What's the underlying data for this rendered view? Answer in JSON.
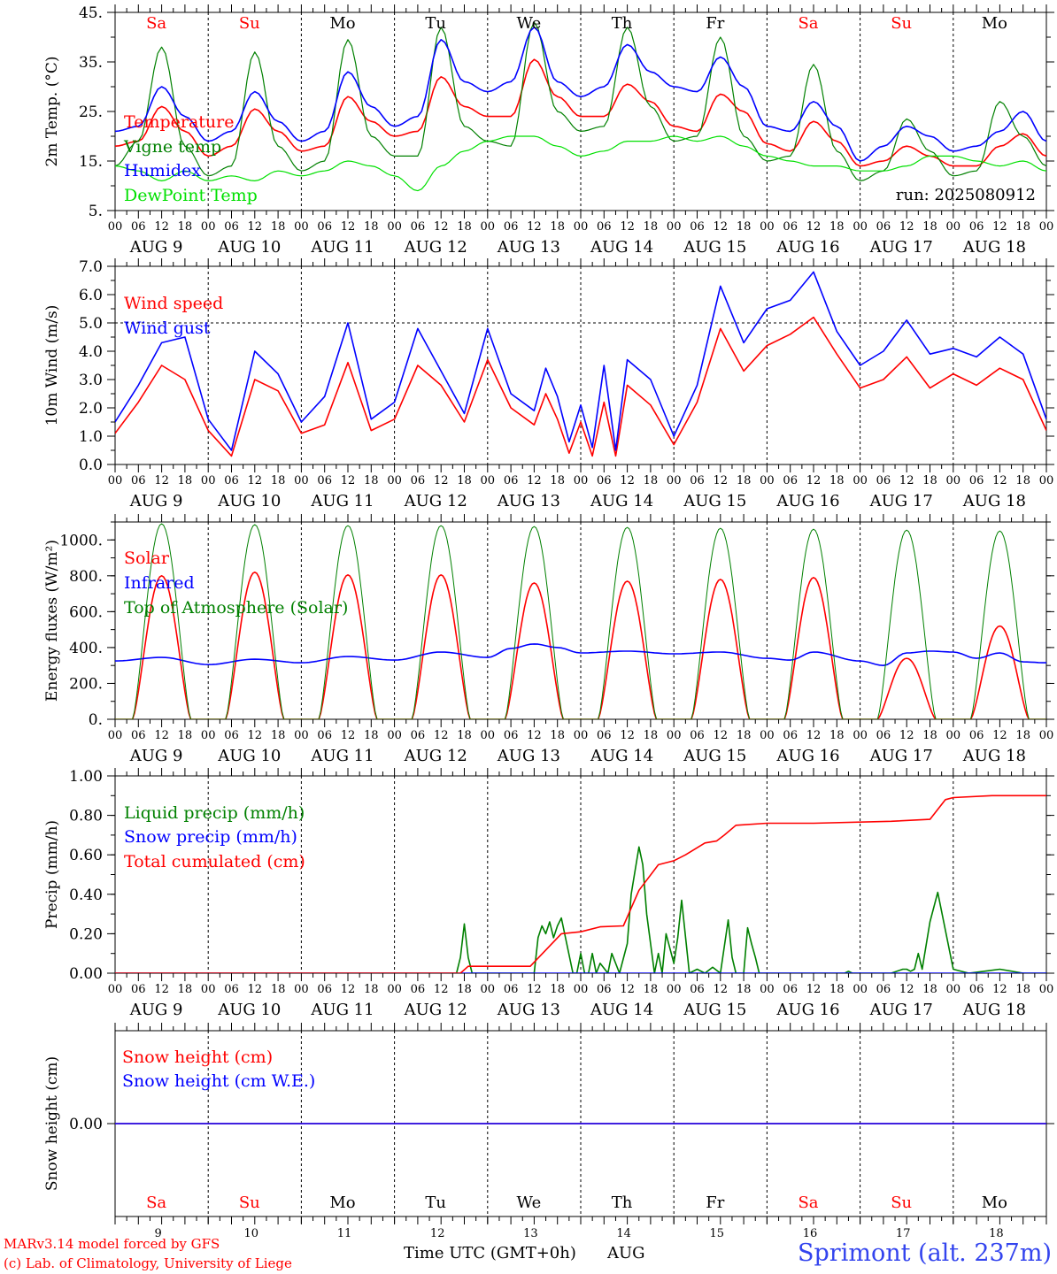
{
  "colors": {
    "red": "#ff0000",
    "blue": "#0000ff",
    "green": "#008000",
    "lightgreen": "#00e000",
    "black": "#000000"
  },
  "days": [
    {
      "label": "Sa",
      "weekend": true,
      "date": "9"
    },
    {
      "label": "Su",
      "weekend": true,
      "date": "10"
    },
    {
      "label": "Mo",
      "weekend": false,
      "date": "11"
    },
    {
      "label": "Tu",
      "weekend": false,
      "date": "12"
    },
    {
      "label": "We",
      "weekend": false,
      "date": "13"
    },
    {
      "label": "Th",
      "weekend": false,
      "date": "14"
    },
    {
      "label": "Fr",
      "weekend": false,
      "date": "15"
    },
    {
      "label": "Sa",
      "weekend": true,
      "date": "16"
    },
    {
      "label": "Su",
      "weekend": true,
      "date": "17"
    },
    {
      "label": "Mo",
      "weekend": false,
      "date": "18"
    }
  ],
  "hour_ticks": [
    "00",
    "06",
    "12",
    "18"
  ],
  "date_row": [
    "AUG  9",
    "AUG 10",
    "AUG 11",
    "AUG 12",
    "AUG 13",
    "AUG 14",
    "AUG 15",
    "AUG 16",
    "AUG 17",
    "AUG 18"
  ],
  "footer": {
    "credit_line1": "MARv3.14 model forced by GFS",
    "credit_line2": "(c) Lab. of Climatology, University of Liege",
    "time_label": "Time UTC (GMT+0h)",
    "month": "AUG",
    "location": "Sprimont (alt. 237m)"
  },
  "chart_data": [
    {
      "type": "line",
      "ylabel": "2m Temp. (°C)",
      "ylim": [
        5,
        45
      ],
      "yticks": [
        "5.",
        "15.",
        "25.",
        "35.",
        "45."
      ],
      "yticks_values": [
        5,
        15,
        25,
        35,
        45
      ],
      "annotation": "run: 2025080912",
      "x_unit": "hours since AUG 9 00 UTC",
      "series": [
        {
          "name": "Temperature",
          "color": "#ff0000",
          "x": [
            0,
            6,
            12,
            18,
            24,
            30,
            36,
            42,
            48,
            54,
            60,
            66,
            72,
            78,
            84,
            90,
            96,
            102,
            108,
            114,
            120,
            126,
            132,
            138,
            144,
            150,
            156,
            162,
            168,
            174,
            180,
            186,
            192,
            198,
            204,
            210,
            216,
            222,
            228,
            234,
            240
          ],
          "values": [
            18,
            19,
            26,
            21,
            16,
            18,
            25.5,
            21,
            17,
            18,
            28,
            23,
            20,
            21,
            32,
            26,
            24,
            24,
            35.5,
            28,
            24,
            24,
            30.5,
            27,
            22,
            21,
            28.5,
            25,
            18.5,
            17,
            23,
            19,
            14,
            15,
            18,
            16,
            14,
            14,
            18,
            20.5,
            16
          ]
        },
        {
          "name": "Vigne temp",
          "color": "#008000",
          "x": [
            0,
            6,
            12,
            18,
            24,
            30,
            36,
            42,
            48,
            54,
            60,
            66,
            72,
            78,
            84,
            90,
            96,
            102,
            108,
            114,
            120,
            126,
            132,
            138,
            144,
            150,
            156,
            162,
            168,
            174,
            180,
            186,
            192,
            198,
            204,
            210,
            216,
            222,
            228,
            234,
            240
          ],
          "values": [
            14,
            19,
            38,
            18,
            12,
            14,
            37,
            18,
            13,
            15,
            39.5,
            20,
            16,
            16,
            42,
            22,
            19,
            18,
            43,
            25,
            21,
            22,
            42,
            26,
            19,
            20,
            40,
            20,
            15,
            16,
            34.5,
            17,
            11,
            13,
            23.5,
            17,
            12,
            13,
            27,
            20,
            14
          ]
        },
        {
          "name": "Humidex",
          "color": "#0000ff",
          "x": [
            0,
            6,
            12,
            18,
            24,
            30,
            36,
            42,
            48,
            54,
            60,
            66,
            72,
            78,
            84,
            90,
            96,
            102,
            108,
            114,
            120,
            126,
            132,
            138,
            144,
            150,
            156,
            162,
            168,
            174,
            180,
            186,
            192,
            198,
            204,
            210,
            216,
            222,
            228,
            234,
            240
          ],
          "values": [
            21,
            22,
            30,
            24,
            19,
            21,
            29,
            23,
            19,
            21,
            33,
            26,
            22,
            24,
            39.5,
            31,
            29,
            31,
            42,
            31,
            28,
            30,
            38.5,
            33,
            30,
            29,
            36,
            30,
            22,
            21,
            27,
            22,
            15,
            18,
            22,
            20,
            17,
            18,
            21,
            25,
            19
          ]
        },
        {
          "name": "DewPoint Temp",
          "color": "#00e000",
          "x": [
            0,
            6,
            12,
            18,
            24,
            30,
            36,
            42,
            48,
            54,
            60,
            66,
            72,
            78,
            84,
            90,
            96,
            102,
            108,
            114,
            120,
            126,
            132,
            138,
            144,
            150,
            156,
            162,
            168,
            174,
            180,
            186,
            192,
            198,
            204,
            210,
            216,
            222,
            228,
            234,
            240
          ],
          "values": [
            14,
            13,
            11,
            13,
            11,
            12,
            11,
            13,
            12,
            13,
            15,
            14,
            12,
            9,
            14,
            17,
            19,
            20,
            20,
            18,
            16,
            17,
            19,
            19,
            20,
            19,
            20,
            18,
            16,
            15,
            14,
            14,
            13,
            13,
            14,
            16,
            16,
            15,
            14,
            15,
            13
          ]
        }
      ]
    },
    {
      "type": "line",
      "ylabel": "10m Wind (m/s)",
      "ylim": [
        0,
        7
      ],
      "yticks": [
        "0.0",
        "1.0",
        "2.0",
        "3.0",
        "4.0",
        "5.0",
        "6.0",
        "7.0"
      ],
      "yticks_values": [
        0,
        1,
        2,
        3,
        4,
        5,
        6,
        7
      ],
      "reference_line": 5.0,
      "x_unit": "hours since AUG 9 00 UTC",
      "series": [
        {
          "name": "Wind speed",
          "color": "#ff0000",
          "x": [
            0,
            6,
            12,
            18,
            24,
            30,
            36,
            42,
            48,
            54,
            60,
            66,
            72,
            78,
            84,
            90,
            96,
            102,
            108,
            111,
            114,
            117,
            120,
            123,
            126,
            129,
            132,
            138,
            144,
            150,
            156,
            162,
            168,
            174,
            180,
            186,
            192,
            198,
            204,
            210,
            216,
            222,
            228,
            234,
            240
          ],
          "values": [
            1.1,
            2.2,
            3.5,
            3.0,
            1.2,
            0.3,
            3.0,
            2.6,
            1.1,
            1.4,
            3.6,
            1.2,
            1.6,
            3.5,
            2.8,
            1.5,
            3.7,
            2.0,
            1.4,
            2.5,
            1.6,
            0.4,
            1.5,
            0.3,
            2.2,
            0.3,
            2.8,
            2.1,
            0.7,
            2.2,
            4.8,
            3.3,
            4.2,
            4.6,
            5.2,
            3.9,
            2.7,
            3.0,
            3.8,
            2.7,
            3.2,
            2.8,
            3.4,
            3.0,
            1.2
          ]
        },
        {
          "name": "Wind gust",
          "color": "#0000ff",
          "x": [
            0,
            6,
            12,
            18,
            24,
            30,
            36,
            42,
            48,
            54,
            60,
            66,
            72,
            78,
            84,
            90,
            96,
            102,
            108,
            111,
            114,
            117,
            120,
            123,
            126,
            129,
            132,
            138,
            144,
            150,
            156,
            162,
            168,
            174,
            180,
            186,
            192,
            198,
            204,
            210,
            216,
            222,
            228,
            234,
            240
          ],
          "values": [
            1.5,
            2.8,
            4.3,
            4.5,
            1.6,
            0.5,
            4.0,
            3.2,
            1.5,
            2.4,
            5.0,
            1.6,
            2.2,
            4.8,
            3.3,
            1.8,
            4.8,
            2.5,
            1.9,
            3.4,
            2.4,
            0.8,
            2.1,
            0.6,
            3.5,
            0.5,
            3.7,
            3.0,
            1.0,
            2.8,
            6.3,
            4.3,
            5.5,
            5.8,
            6.8,
            4.7,
            3.5,
            4.0,
            5.1,
            3.9,
            4.1,
            3.8,
            4.5,
            3.9,
            1.6
          ]
        }
      ]
    },
    {
      "type": "line",
      "ylabel": "Energy fluxes (W/m²)",
      "ylim": [
        0,
        1100
      ],
      "yticks": [
        "0.",
        "200.",
        "400.",
        "600.",
        "800.",
        "1000."
      ],
      "yticks_values": [
        0,
        200,
        400,
        600,
        800,
        1000
      ],
      "daylight_hours": [
        4.5,
        19.5
      ],
      "series": [
        {
          "name": "Solar",
          "color": "#ff0000",
          "daily_peak": [
            800,
            820,
            805,
            805,
            760,
            770,
            780,
            790,
            340,
            520
          ]
        },
        {
          "name": "Infrared",
          "color": "#0000ff",
          "x": [
            0,
            12,
            24,
            36,
            48,
            60,
            72,
            84,
            96,
            102,
            108,
            114,
            120,
            132,
            144,
            156,
            168,
            174,
            180,
            192,
            198,
            204,
            210,
            216,
            222,
            228,
            234,
            240
          ],
          "values": [
            325,
            345,
            305,
            335,
            315,
            350,
            330,
            375,
            345,
            395,
            420,
            400,
            370,
            380,
            365,
            375,
            340,
            330,
            375,
            325,
            300,
            370,
            380,
            375,
            340,
            370,
            320,
            315
          ]
        },
        {
          "name": "Top of Atmosphere (Solar)",
          "color": "#008000",
          "daily_peak": [
            1090,
            1085,
            1080,
            1080,
            1075,
            1070,
            1065,
            1060,
            1055,
            1050
          ]
        }
      ]
    },
    {
      "type": "line",
      "ylabel": "Precip (mm/h)",
      "ylim": [
        0,
        1
      ],
      "yticks": [
        "0.00",
        "0.20",
        "0.40",
        "0.60",
        "0.80",
        "1.00"
      ],
      "yticks_values": [
        0,
        0.2,
        0.4,
        0.6,
        0.8,
        1
      ],
      "series": [
        {
          "name": "Liquid precip (mm/h)",
          "color": "#008000",
          "x": [
            0,
            88,
            89,
            90,
            91,
            92,
            96,
            108,
            109,
            110,
            111,
            112,
            113,
            114,
            115,
            118,
            119,
            120,
            121,
            122,
            123,
            124,
            125,
            127,
            128,
            130,
            132,
            133,
            135,
            136,
            137,
            139,
            140,
            141,
            142,
            144,
            145,
            146,
            148,
            150,
            152,
            154,
            156,
            158,
            159,
            160,
            162,
            163,
            164,
            165,
            166,
            168,
            170,
            186,
            188,
            189,
            190,
            196,
            200,
            203,
            204,
            205,
            206,
            207,
            208,
            210,
            212,
            216,
            220,
            224,
            228,
            234,
            240
          ],
          "values": [
            0,
            0,
            0.08,
            0.25,
            0.08,
            0,
            0,
            0,
            0.18,
            0.24,
            0.2,
            0.26,
            0.18,
            0.24,
            0.28,
            0,
            0,
            0.1,
            0,
            0,
            0.1,
            0,
            0.05,
            0,
            0.1,
            0,
            0.15,
            0.4,
            0.64,
            0.55,
            0.3,
            0,
            0.1,
            0,
            0.2,
            0.05,
            0.18,
            0.37,
            0,
            0.02,
            0,
            0.03,
            0,
            0.27,
            0.08,
            0,
            0,
            0.23,
            0.15,
            0.08,
            0,
            0,
            0,
            0,
            0,
            0.01,
            0,
            0,
            0,
            0.02,
            0.02,
            0.01,
            0.02,
            0.1,
            0.02,
            0.26,
            0.41,
            0.02,
            0,
            0.01,
            0.02,
            0,
            0
          ]
        },
        {
          "name": "Snow precip (mm/h)",
          "color": "#0000ff",
          "x": [
            0,
            240
          ],
          "values": [
            0,
            0
          ]
        },
        {
          "name": "Total cumulated (cm)",
          "color": "#ff0000",
          "x": [
            0,
            89,
            91,
            107,
            115,
            120,
            125,
            131,
            135,
            140,
            144,
            147,
            152,
            155,
            157,
            160,
            168,
            175,
            180,
            200,
            210,
            214,
            216,
            226,
            240
          ],
          "values": [
            0,
            0,
            0.035,
            0.035,
            0.2,
            0.21,
            0.235,
            0.24,
            0.42,
            0.55,
            0.57,
            0.6,
            0.66,
            0.67,
            0.7,
            0.75,
            0.76,
            0.76,
            0.76,
            0.77,
            0.78,
            0.88,
            0.89,
            0.9,
            0.9
          ]
        }
      ]
    },
    {
      "type": "line",
      "ylabel": "Snow height (cm)",
      "ylim": [
        -1,
        1
      ],
      "yticks": [
        "0.00"
      ],
      "yticks_values": [
        0
      ],
      "series": [
        {
          "name": "Snow height (cm)",
          "color": "#ff0000",
          "x": [
            0,
            240
          ],
          "values": [
            0,
            0
          ]
        },
        {
          "name": "Snow height (cm W.E.)",
          "color": "#0000ff",
          "x": [
            0,
            240
          ],
          "values": [
            0,
            0
          ]
        }
      ]
    }
  ]
}
